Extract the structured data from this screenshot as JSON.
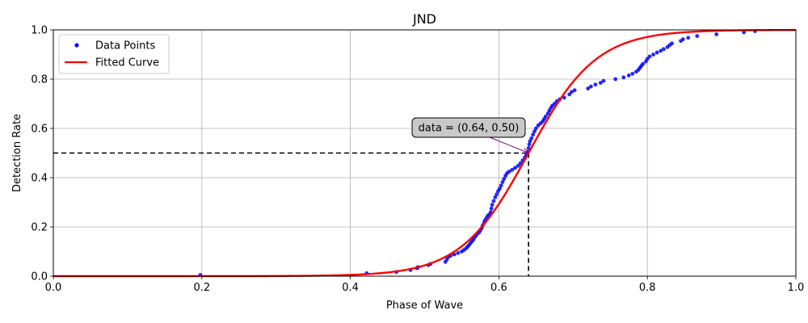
{
  "chart_data": {
    "type": "scatter",
    "title": "JND",
    "xlabel": "Phase of Wave",
    "ylabel": "Detection Rate",
    "xlim": [
      0.0,
      1.0
    ],
    "ylim": [
      0.0,
      1.0
    ],
    "xticks": [
      "0.0",
      "0.2",
      "0.4",
      "0.6",
      "0.8",
      "1.0"
    ],
    "yticks": [
      "0.0",
      "0.2",
      "0.4",
      "0.6",
      "0.8",
      "1.0"
    ],
    "grid": true,
    "legend_position": "top-left",
    "series": [
      {
        "name": "Data Points",
        "kind": "scatter",
        "color": "#0000ff",
        "points": [
          [
            0.198,
            0.005
          ],
          [
            0.422,
            0.012
          ],
          [
            0.462,
            0.017
          ],
          [
            0.481,
            0.025
          ],
          [
            0.49,
            0.032
          ],
          [
            0.491,
            0.037
          ],
          [
            0.505,
            0.045
          ],
          [
            0.508,
            0.05
          ],
          [
            0.528,
            0.058
          ],
          [
            0.53,
            0.068
          ],
          [
            0.532,
            0.078
          ],
          [
            0.535,
            0.083
          ],
          [
            0.54,
            0.088
          ],
          [
            0.545,
            0.094
          ],
          [
            0.55,
            0.1
          ],
          [
            0.553,
            0.106
          ],
          [
            0.556,
            0.113
          ],
          [
            0.558,
            0.12
          ],
          [
            0.56,
            0.127
          ],
          [
            0.562,
            0.135
          ],
          [
            0.564,
            0.142
          ],
          [
            0.566,
            0.15
          ],
          [
            0.568,
            0.16
          ],
          [
            0.57,
            0.168
          ],
          [
            0.573,
            0.176
          ],
          [
            0.575,
            0.185
          ],
          [
            0.577,
            0.195
          ],
          [
            0.578,
            0.205
          ],
          [
            0.58,
            0.215
          ],
          [
            0.581,
            0.225
          ],
          [
            0.583,
            0.235
          ],
          [
            0.585,
            0.245
          ],
          [
            0.587,
            0.25
          ],
          [
            0.589,
            0.26
          ],
          [
            0.59,
            0.275
          ],
          [
            0.591,
            0.29
          ],
          [
            0.593,
            0.305
          ],
          [
            0.595,
            0.32
          ],
          [
            0.597,
            0.332
          ],
          [
            0.599,
            0.345
          ],
          [
            0.601,
            0.355
          ],
          [
            0.603,
            0.368
          ],
          [
            0.605,
            0.382
          ],
          [
            0.607,
            0.395
          ],
          [
            0.609,
            0.408
          ],
          [
            0.611,
            0.418
          ],
          [
            0.614,
            0.425
          ],
          [
            0.618,
            0.432
          ],
          [
            0.622,
            0.44
          ],
          [
            0.626,
            0.448
          ],
          [
            0.629,
            0.458
          ],
          [
            0.632,
            0.47
          ],
          [
            0.635,
            0.482
          ],
          [
            0.637,
            0.492
          ],
          [
            0.639,
            0.505
          ],
          [
            0.64,
            0.52
          ],
          [
            0.641,
            0.535
          ],
          [
            0.642,
            0.548
          ],
          [
            0.644,
            0.56
          ],
          [
            0.646,
            0.575
          ],
          [
            0.648,
            0.588
          ],
          [
            0.65,
            0.6
          ],
          [
            0.653,
            0.612
          ],
          [
            0.656,
            0.62
          ],
          [
            0.659,
            0.628
          ],
          [
            0.661,
            0.638
          ],
          [
            0.663,
            0.648
          ],
          [
            0.666,
            0.66
          ],
          [
            0.668,
            0.672
          ],
          [
            0.67,
            0.683
          ],
          [
            0.672,
            0.692
          ],
          [
            0.675,
            0.7
          ],
          [
            0.678,
            0.71
          ],
          [
            0.682,
            0.718
          ],
          [
            0.688,
            0.725
          ],
          [
            0.695,
            0.738
          ],
          [
            0.698,
            0.748
          ],
          [
            0.702,
            0.755
          ],
          [
            0.72,
            0.762
          ],
          [
            0.724,
            0.77
          ],
          [
            0.73,
            0.778
          ],
          [
            0.737,
            0.785
          ],
          [
            0.741,
            0.793
          ],
          [
            0.757,
            0.8
          ],
          [
            0.768,
            0.807
          ],
          [
            0.775,
            0.815
          ],
          [
            0.78,
            0.822
          ],
          [
            0.785,
            0.83
          ],
          [
            0.788,
            0.838
          ],
          [
            0.79,
            0.846
          ],
          [
            0.792,
            0.854
          ],
          [
            0.794,
            0.862
          ],
          [
            0.798,
            0.872
          ],
          [
            0.8,
            0.882
          ],
          [
            0.803,
            0.892
          ],
          [
            0.808,
            0.9
          ],
          [
            0.813,
            0.908
          ],
          [
            0.818,
            0.915
          ],
          [
            0.822,
            0.922
          ],
          [
            0.827,
            0.93
          ],
          [
            0.83,
            0.938
          ],
          [
            0.833,
            0.945
          ],
          [
            0.845,
            0.955
          ],
          [
            0.848,
            0.962
          ],
          [
            0.855,
            0.968
          ],
          [
            0.867,
            0.975
          ],
          [
            0.893,
            0.982
          ],
          [
            0.93,
            0.99
          ],
          [
            0.945,
            0.995
          ]
        ]
      },
      {
        "name": "Fitted Curve",
        "kind": "logistic_line",
        "color": "#ff0000",
        "midpoint": 0.64,
        "steepness": 22
      }
    ],
    "annotation": {
      "text": "data = (0.64, 0.50)",
      "x": 0.64,
      "y": 0.5,
      "box_color": "#c8c8c8",
      "arrow_color": "#800080"
    },
    "reference_lines": {
      "x": 0.64,
      "y": 0.5,
      "style": "dashed",
      "color": "#000000"
    }
  }
}
